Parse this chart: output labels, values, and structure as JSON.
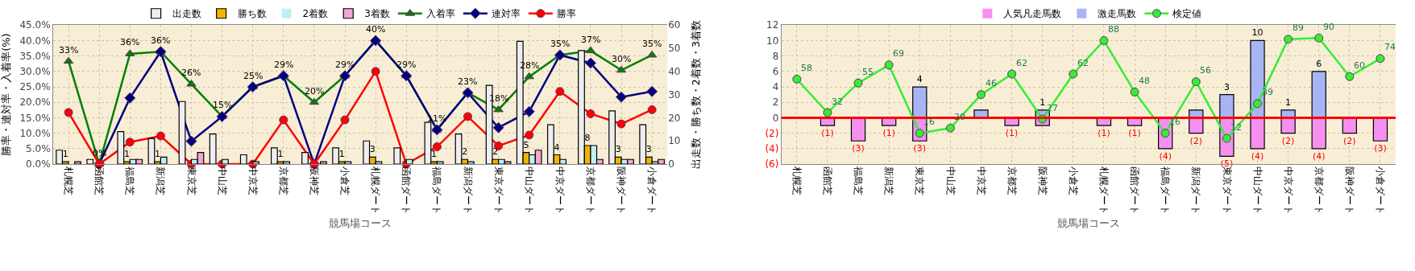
{
  "chart_data": [
    {
      "type": "bar",
      "xlabel": "競馬場コース",
      "ylabel": "勝率・連対率・入着率(%)",
      "y2label": "出走数・勝ち数・2着数・3着数",
      "categories": [
        "札幌芝",
        "函館芝",
        "福島芝",
        "新潟芝",
        "東京芝",
        "中山芝",
        "中京芝",
        "京都芝",
        "阪神芝",
        "小倉芝",
        "札幌ダート",
        "函館ダート",
        "福島ダート",
        "新潟ダート",
        "東京ダート",
        "中山ダート",
        "中京ダート",
        "京都ダート",
        "阪神ダート",
        "小倉ダート"
      ],
      "series": [
        {
          "name": "出走数",
          "color": "#eeeeee",
          "axis": "y2",
          "values": [
            6,
            2,
            14,
            11,
            27,
            13,
            4,
            7,
            5,
            7,
            10,
            7,
            18,
            13,
            34,
            53,
            17,
            49,
            23,
            17
          ]
        },
        {
          "name": "勝ち数",
          "color": "#f0b400",
          "axis": "y2",
          "values": [
            1,
            0,
            1,
            1,
            0,
            0,
            0,
            1,
            0,
            1,
            3,
            0,
            1,
            2,
            2,
            5,
            4,
            8,
            3,
            3
          ],
          "value_labels": [
            "1",
            null,
            "1",
            "1",
            null,
            null,
            null,
            "1",
            null,
            "1",
            "3",
            null,
            "1",
            "2",
            "2",
            "5",
            "4",
            "8",
            "3",
            "3"
          ]
        },
        {
          "name": "2着数",
          "color": "#bff0f0",
          "axis": "y2",
          "values": [
            0,
            0,
            2,
            3,
            2,
            2,
            1,
            1,
            0,
            1,
            1,
            2,
            1,
            1,
            2,
            4,
            2,
            8,
            2,
            1
          ]
        },
        {
          "name": "3着数",
          "color": "#f4a6d0",
          "axis": "y2",
          "values": [
            1,
            0,
            2,
            0,
            5,
            0,
            0,
            0,
            1,
            0,
            0,
            0,
            0,
            0,
            1,
            6,
            0,
            2,
            2,
            2
          ]
        },
        {
          "name": "入着率",
          "type": "line",
          "color": "#008000",
          "marker": "triangle",
          "values": [
            33.3,
            0,
            35.7,
            36.4,
            25.9,
            15.4,
            25,
            28.6,
            20,
            28.6,
            40,
            28.6,
            11.1,
            23.1,
            17.6,
            28.3,
            35.3,
            36.7,
            30.4,
            35.3
          ],
          "value_labels": [
            "33%",
            "0%",
            "36%",
            "36%",
            "26%",
            "15%",
            "25%",
            "29%",
            "20%",
            "29%",
            "40%",
            "29%",
            "11%",
            "23%",
            "18%",
            "28%",
            "35%",
            "37%",
            "30%",
            "35%"
          ]
        },
        {
          "name": "連対率",
          "type": "line",
          "color": "#000080",
          "marker": "diamond",
          "values": [
            null,
            0,
            21.4,
            36.4,
            7.4,
            15.4,
            25,
            28.6,
            0,
            28.6,
            40,
            28.6,
            11.1,
            23.1,
            11.8,
            17,
            35.3,
            32.7,
            21.7,
            23.5
          ]
        },
        {
          "name": "勝率",
          "type": "line",
          "color": "#ff0000",
          "marker": "circle",
          "values": [
            16.7,
            0,
            7.1,
            9.1,
            0,
            0,
            0,
            14.3,
            0,
            14.3,
            30,
            0,
            5.6,
            15.4,
            5.9,
            9.4,
            23.5,
            16.3,
            13,
            17.6
          ]
        }
      ],
      "ylim": [
        0,
        45
      ],
      "yticks": [
        {
          "value": 0,
          "label": "0.0%"
        },
        {
          "value": 5,
          "label": "5.0%"
        },
        {
          "value": 10,
          "label": "10.0%"
        },
        {
          "value": 15,
          "label": "15.0%"
        },
        {
          "value": 20,
          "label": "20.0%"
        },
        {
          "value": 25,
          "label": "25.0%"
        },
        {
          "value": 30,
          "label": "30.0%"
        },
        {
          "value": 35,
          "label": "35.0%"
        },
        {
          "value": 40,
          "label": "40.0%"
        },
        {
          "value": 45,
          "label": "45.0%"
        }
      ],
      "y2lim": [
        0,
        60
      ],
      "y2ticks": [
        0,
        10,
        20,
        30,
        40,
        50,
        60
      ],
      "grid": true,
      "legend": "top"
    },
    {
      "type": "bar",
      "stacked": true,
      "xlabel": "競馬場コース",
      "categories": [
        "札幌芝",
        "函館芝",
        "福島芝",
        "新潟芝",
        "東京芝",
        "中山芝",
        "中京芝",
        "京都芝",
        "阪神芝",
        "小倉芝",
        "札幌ダート",
        "函館ダート",
        "福島ダート",
        "新潟ダート",
        "東京ダート",
        "中山ダート",
        "中京ダート",
        "京都ダート",
        "阪神ダート",
        "小倉ダート"
      ],
      "series": [
        {
          "name": "人気凡走馬数",
          "color": "#f590f0",
          "values": [
            0,
            -1,
            -3,
            -1,
            -3,
            0,
            0,
            -1,
            -1,
            0,
            -1,
            -1,
            -4,
            -2,
            -5,
            -4,
            -2,
            -4,
            -2,
            -3
          ],
          "value_labels": [
            null,
            "(1)",
            "(3)",
            "(1)",
            "(3)",
            null,
            null,
            "(1)",
            null,
            null,
            "(1)",
            "(1)",
            "(4)",
            "(2)",
            "(5)",
            "(4)",
            "(2)",
            "(4)",
            "(2)",
            "(3)"
          ]
        },
        {
          "name": "激走馬数",
          "color": "#a8b4f4",
          "values": [
            0,
            0,
            0,
            0,
            4,
            0,
            1,
            0,
            1,
            0,
            0,
            0,
            0,
            1,
            3,
            10,
            1,
            6,
            0,
            0
          ],
          "value_labels": [
            null,
            null,
            null,
            null,
            "4",
            null,
            null,
            null,
            "1",
            null,
            null,
            null,
            null,
            null,
            "3",
            "10",
            "1",
            "6",
            null,
            null
          ]
        },
        {
          "name": "検定値",
          "type": "line",
          "color": "#33ee33",
          "marker": "circle",
          "axis": "y2",
          "values": [
            58,
            32,
            55,
            69,
            16,
            20,
            46,
            62,
            27,
            62,
            88,
            48,
            16,
            56,
            12,
            39,
            89,
            90,
            60,
            74
          ],
          "value_labels": [
            "58",
            "32",
            "55",
            "69",
            "16",
            "20",
            "46",
            "62",
            "27",
            "62",
            "88",
            "48",
            "16",
            "56",
            "12",
            "39",
            "89",
            "90",
            "60",
            "74"
          ]
        }
      ],
      "ylim": [
        -6,
        12
      ],
      "yticks": [
        {
          "value": -6,
          "label": "(6)"
        },
        {
          "value": -4,
          "label": "(4)"
        },
        {
          "value": -2,
          "label": "(2)"
        },
        0,
        2,
        4,
        6,
        8,
        10,
        12
      ],
      "y2lim": [
        -8,
        100
      ],
      "ref_lines": [
        {
          "axis": "y",
          "value": 0,
          "color": "#ff0000"
        }
      ],
      "grid": true,
      "legend": "top"
    }
  ]
}
